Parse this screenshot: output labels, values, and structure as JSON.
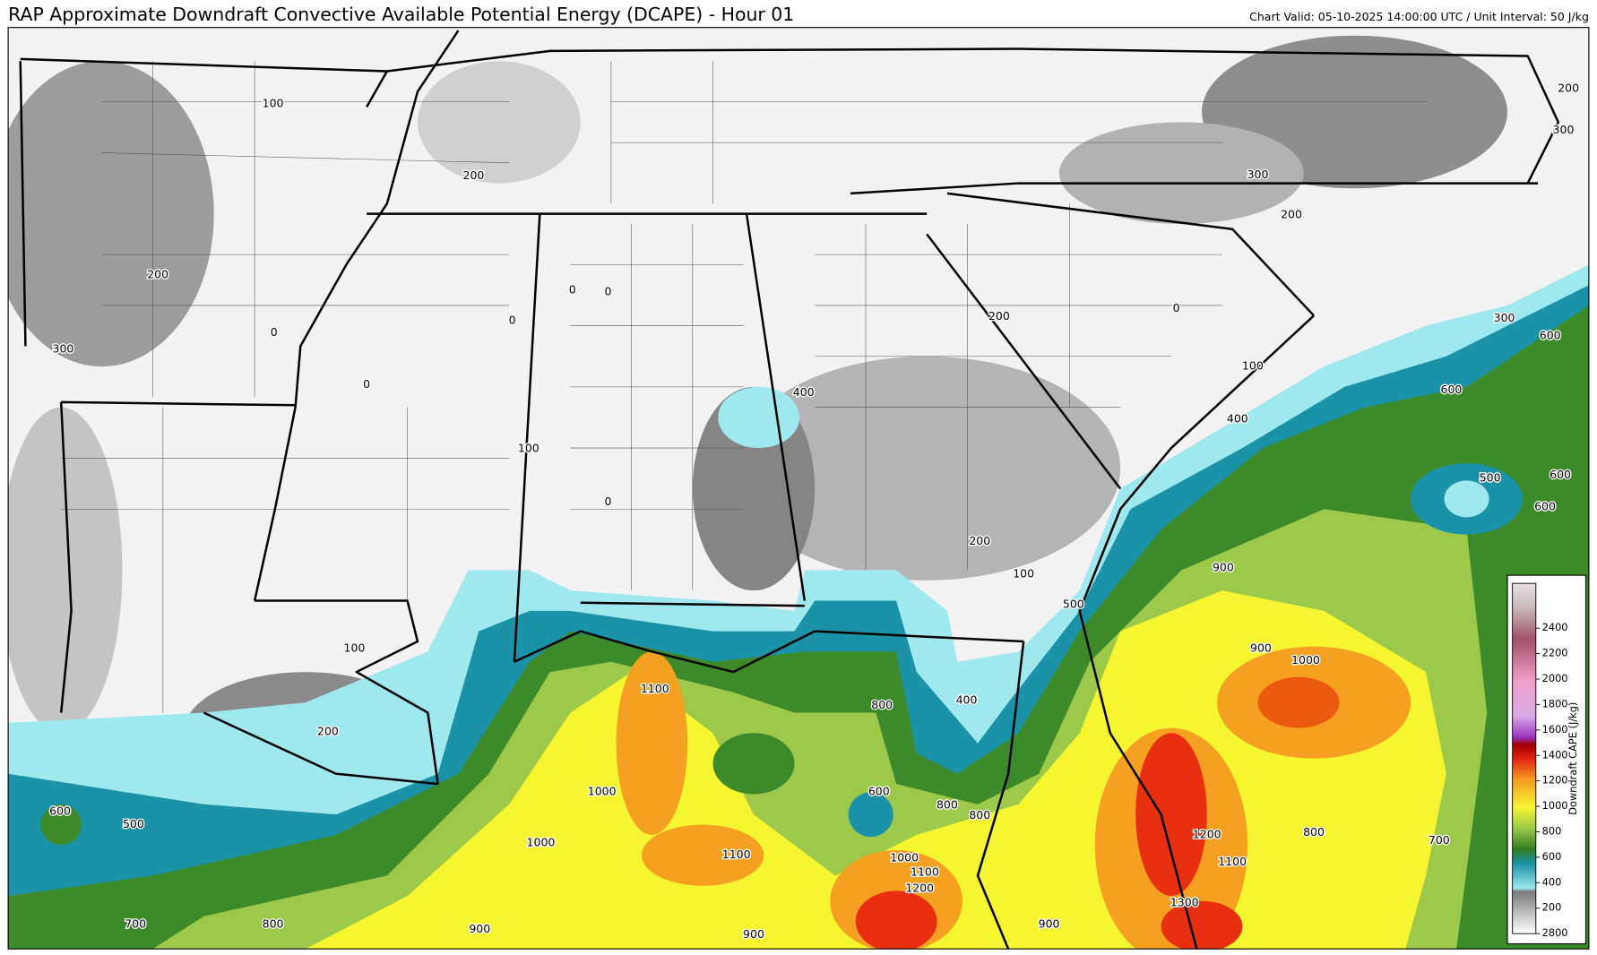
{
  "header": {
    "title": "RAP Approximate Downdraft Convective Available Potential Energy (DCAPE) - Hour 01",
    "valid": "Chart Valid: 05-10-2025 14:00:00 UTC / Unit Interval: 50 J/kg"
  },
  "map": {
    "contour_labels": [
      "100",
      "200",
      "200",
      "300",
      "0",
      "0",
      "0",
      "0",
      "0",
      "100",
      "0",
      "400",
      "200",
      "0",
      "100",
      "400",
      "300",
      "200",
      "200",
      "300",
      "300",
      "600",
      "600",
      "500",
      "600",
      "600",
      "200",
      "100",
      "500",
      "900",
      "900",
      "1000",
      "100",
      "200",
      "1100",
      "800",
      "400",
      "600",
      "800",
      "800",
      "1000",
      "1000",
      "1100",
      "1000",
      "1100",
      "1200",
      "1200",
      "1100",
      "800",
      "700",
      "1300",
      "900",
      "600",
      "500",
      "700",
      "800",
      "900",
      "900"
    ]
  },
  "colorbar": {
    "label": "Downdraft CAPE (J/kg)",
    "ticks": [
      "2800",
      "200",
      "400",
      "600",
      "800",
      "1000",
      "1200",
      "1400",
      "1600",
      "1800",
      "2000",
      "2200",
      "2400"
    ]
  }
}
